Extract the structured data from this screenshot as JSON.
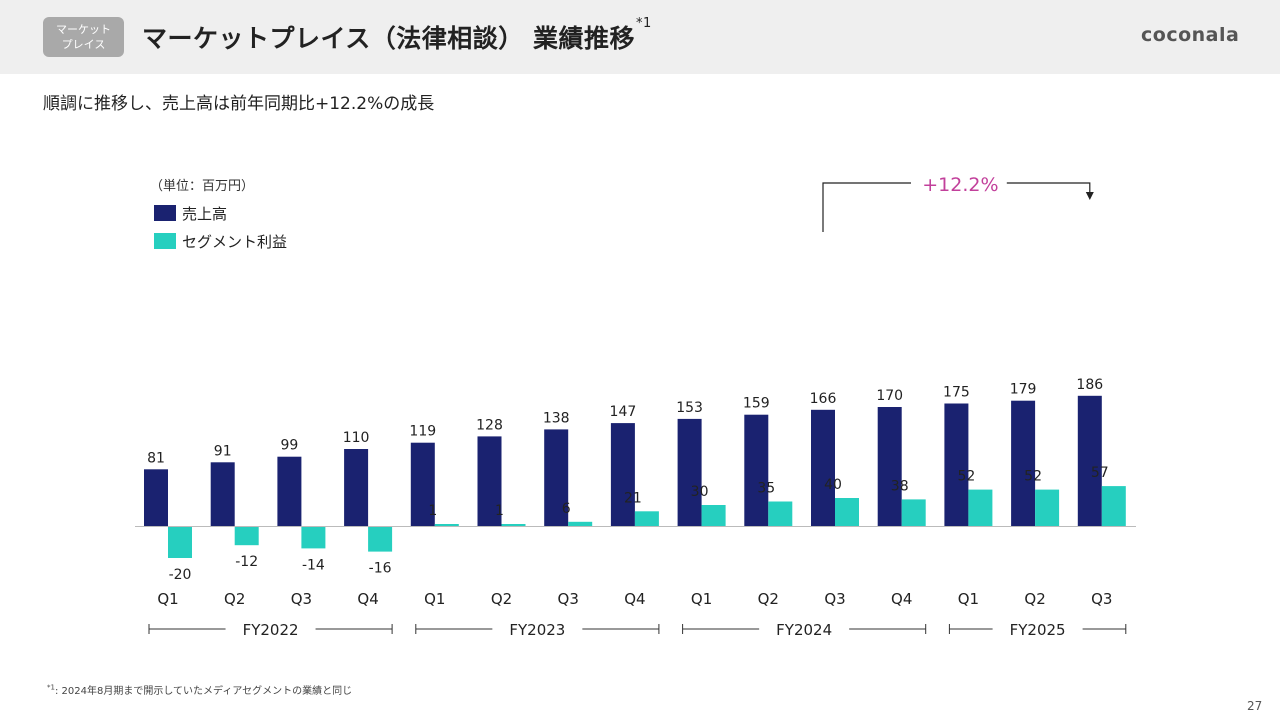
{
  "header": {
    "tag_line1": "マーケット",
    "tag_line2": "プレイス",
    "title": "マーケットプレイス（法律相談） 業績推移",
    "title_mark": "*1",
    "brand": "coconala"
  },
  "subtitle": "順調に推移し、売上高は前年同期比+12.2%の成長",
  "footnote": {
    "mark": "*1",
    "text": ": 2024年8月期まで開示していたメディアセグメントの業績と同じ"
  },
  "page_number": "27",
  "colors": {
    "revenue": "#1a2270",
    "profit": "#26cfbf",
    "annotation": "#c2409b",
    "axis": "#bbbbbb"
  },
  "chart_data": {
    "type": "bar",
    "unit_label": "（単位：百万円）",
    "categories": [
      "Q1",
      "Q2",
      "Q3",
      "Q4",
      "Q1",
      "Q2",
      "Q3",
      "Q4",
      "Q1",
      "Q2",
      "Q3",
      "Q4",
      "Q1",
      "Q2",
      "Q3"
    ],
    "series": [
      {
        "name": "売上高",
        "values": [
          81,
          91,
          99,
          110,
          119,
          128,
          138,
          147,
          153,
          159,
          166,
          170,
          175,
          179,
          186
        ]
      },
      {
        "name": "セグメント利益",
        "values": [
          -20,
          -12,
          -14,
          -16,
          1,
          1,
          6,
          21,
          30,
          35,
          40,
          38,
          52,
          52,
          57
        ]
      }
    ],
    "fiscal_years": [
      {
        "label": "FY2022",
        "first": 0,
        "last": 3
      },
      {
        "label": "FY2023",
        "first": 4,
        "last": 7
      },
      {
        "label": "FY2024",
        "first": 8,
        "last": 11
      },
      {
        "label": "FY2025",
        "first": 12,
        "last": 14
      }
    ],
    "annotation": {
      "text": "+12.2%",
      "from": 10,
      "to": 14
    },
    "legend_position": "top-left"
  }
}
